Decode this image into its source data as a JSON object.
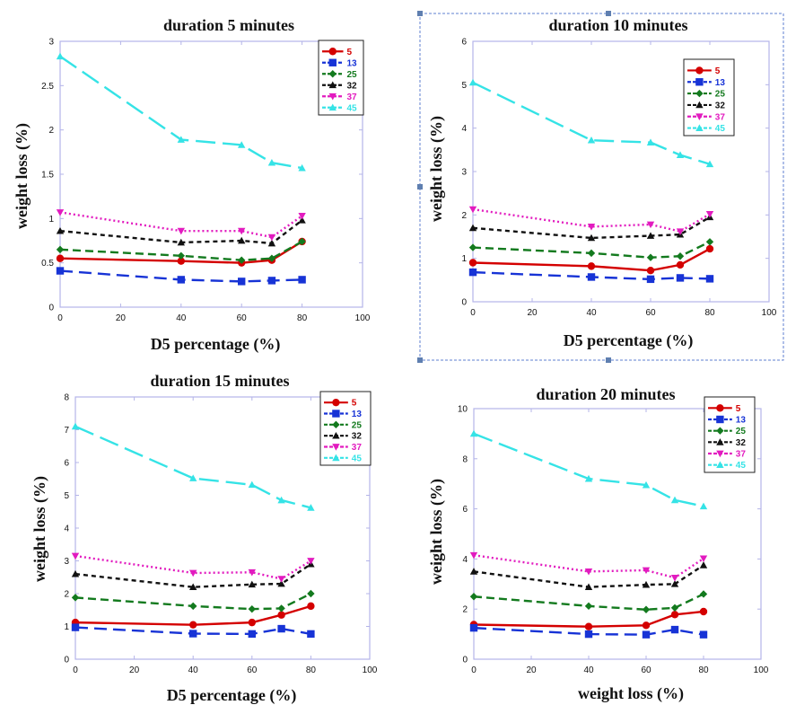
{
  "chart_data": [
    {
      "type": "line",
      "title": "duration 5 minutes",
      "xlabel": "D5 percentage (%)",
      "ylabel": "weight loss (%)",
      "xlim": [
        0,
        100
      ],
      "ylim": [
        0,
        3
      ],
      "xticks": [
        0,
        20,
        40,
        60,
        80,
        100
      ],
      "yticks": [
        0,
        0.5,
        1,
        1.5,
        2,
        2.5,
        3
      ],
      "ytick_labels": [
        "0",
        "0.5",
        "1",
        "1.5",
        "2",
        "2.5",
        "3"
      ],
      "x": [
        0,
        40,
        60,
        70,
        80
      ],
      "legend_position": "top-right",
      "series": [
        {
          "name": "5",
          "values": [
            0.55,
            0.52,
            0.5,
            0.53,
            0.74
          ]
        },
        {
          "name": "13",
          "values": [
            0.41,
            0.31,
            0.29,
            0.3,
            0.31
          ]
        },
        {
          "name": "25",
          "values": [
            0.65,
            0.58,
            0.53,
            0.55,
            0.74
          ]
        },
        {
          "name": "32",
          "values": [
            0.86,
            0.73,
            0.75,
            0.72,
            0.98
          ]
        },
        {
          "name": "37",
          "values": [
            1.07,
            0.86,
            0.86,
            0.79,
            1.03
          ]
        },
        {
          "name": "45",
          "values": [
            2.83,
            1.89,
            1.83,
            1.63,
            1.57
          ]
        }
      ]
    },
    {
      "type": "line",
      "title": "duration 10 minutes",
      "xlabel": "D5 percentage (%)",
      "ylabel": "weight loss (%)",
      "xlim": [
        0,
        100
      ],
      "ylim": [
        0,
        6
      ],
      "xticks": [
        0,
        20,
        40,
        60,
        80,
        100
      ],
      "yticks": [
        0,
        1,
        2,
        3,
        4,
        5,
        6
      ],
      "ytick_labels": [
        "0",
        "1",
        "2",
        "3",
        "4",
        "5",
        "6"
      ],
      "x": [
        0,
        40,
        60,
        70,
        80
      ],
      "legend_position": "top-right",
      "series": [
        {
          "name": "5",
          "values": [
            0.9,
            0.82,
            0.72,
            0.85,
            1.22
          ]
        },
        {
          "name": "13",
          "values": [
            0.68,
            0.57,
            0.52,
            0.55,
            0.53
          ]
        },
        {
          "name": "25",
          "values": [
            1.25,
            1.12,
            1.02,
            1.05,
            1.38
          ]
        },
        {
          "name": "32",
          "values": [
            1.7,
            1.47,
            1.52,
            1.55,
            1.95
          ]
        },
        {
          "name": "37",
          "values": [
            2.13,
            1.73,
            1.78,
            1.62,
            2.02
          ]
        },
        {
          "name": "45",
          "values": [
            5.05,
            3.72,
            3.67,
            3.38,
            3.17
          ]
        }
      ]
    },
    {
      "type": "line",
      "title": "duration 15 minutes",
      "xlabel": "D5 percentage (%)",
      "ylabel": "weight loss (%)",
      "xlim": [
        0,
        100
      ],
      "ylim": [
        0,
        8
      ],
      "xticks": [
        0,
        20,
        40,
        60,
        80,
        100
      ],
      "yticks": [
        0,
        1,
        2,
        3,
        4,
        5,
        6,
        7,
        8
      ],
      "ytick_labels": [
        "0",
        "1",
        "2",
        "3",
        "4",
        "5",
        "6",
        "7",
        "8"
      ],
      "x": [
        0,
        40,
        60,
        70,
        80
      ],
      "legend_position": "top-right",
      "series": [
        {
          "name": "5",
          "values": [
            1.12,
            1.05,
            1.12,
            1.35,
            1.62
          ]
        },
        {
          "name": "13",
          "values": [
            0.97,
            0.78,
            0.77,
            0.93,
            0.77
          ]
        },
        {
          "name": "25",
          "values": [
            1.88,
            1.62,
            1.53,
            1.55,
            2.0
          ]
        },
        {
          "name": "32",
          "values": [
            2.6,
            2.2,
            2.28,
            2.3,
            2.9
          ]
        },
        {
          "name": "37",
          "values": [
            3.15,
            2.63,
            2.65,
            2.45,
            3.0
          ]
        },
        {
          "name": "45",
          "values": [
            7.1,
            5.52,
            5.32,
            4.85,
            4.62
          ]
        }
      ]
    },
    {
      "type": "line",
      "title": "duration 20 minutes",
      "xlabel": "weight loss (%)",
      "ylabel": "weight loss (%)",
      "xlim": [
        0,
        100
      ],
      "ylim": [
        0,
        10
      ],
      "xticks": [
        0,
        20,
        40,
        60,
        80,
        100
      ],
      "yticks": [
        0,
        2,
        4,
        6,
        8,
        10
      ],
      "ytick_labels": [
        "0",
        "2",
        "4",
        "6",
        "8",
        "10"
      ],
      "x": [
        0,
        40,
        60,
        70,
        80
      ],
      "legend_position": "top-right",
      "series": [
        {
          "name": "5",
          "values": [
            1.38,
            1.3,
            1.35,
            1.78,
            1.9
          ]
        },
        {
          "name": "13",
          "values": [
            1.25,
            1.0,
            0.98,
            1.18,
            0.98
          ]
        },
        {
          "name": "25",
          "values": [
            2.5,
            2.12,
            1.98,
            2.05,
            2.6
          ]
        },
        {
          "name": "32",
          "values": [
            3.5,
            2.88,
            2.97,
            3.0,
            3.75
          ]
        },
        {
          "name": "37",
          "values": [
            4.15,
            3.5,
            3.55,
            3.25,
            4.02
          ]
        },
        {
          "name": "45",
          "values": [
            9.0,
            7.2,
            6.95,
            6.35,
            6.1
          ]
        }
      ]
    }
  ],
  "series_styles": [
    {
      "color": "#d40000",
      "dash": "",
      "marker": "circle"
    },
    {
      "color": "#1733d6",
      "dash": "14,7",
      "marker": "square"
    },
    {
      "color": "#137a1e",
      "dash": "9,5",
      "marker": "diamond"
    },
    {
      "color": "#111111",
      "dash": "5,4",
      "marker": "triangle-up"
    },
    {
      "color": "#e21bbf",
      "dash": "2,3",
      "marker": "triangle-down"
    },
    {
      "color": "#35e3e6",
      "dash": "22,8",
      "marker": "triangle-up"
    }
  ],
  "frame_color": "#b4b4e8"
}
